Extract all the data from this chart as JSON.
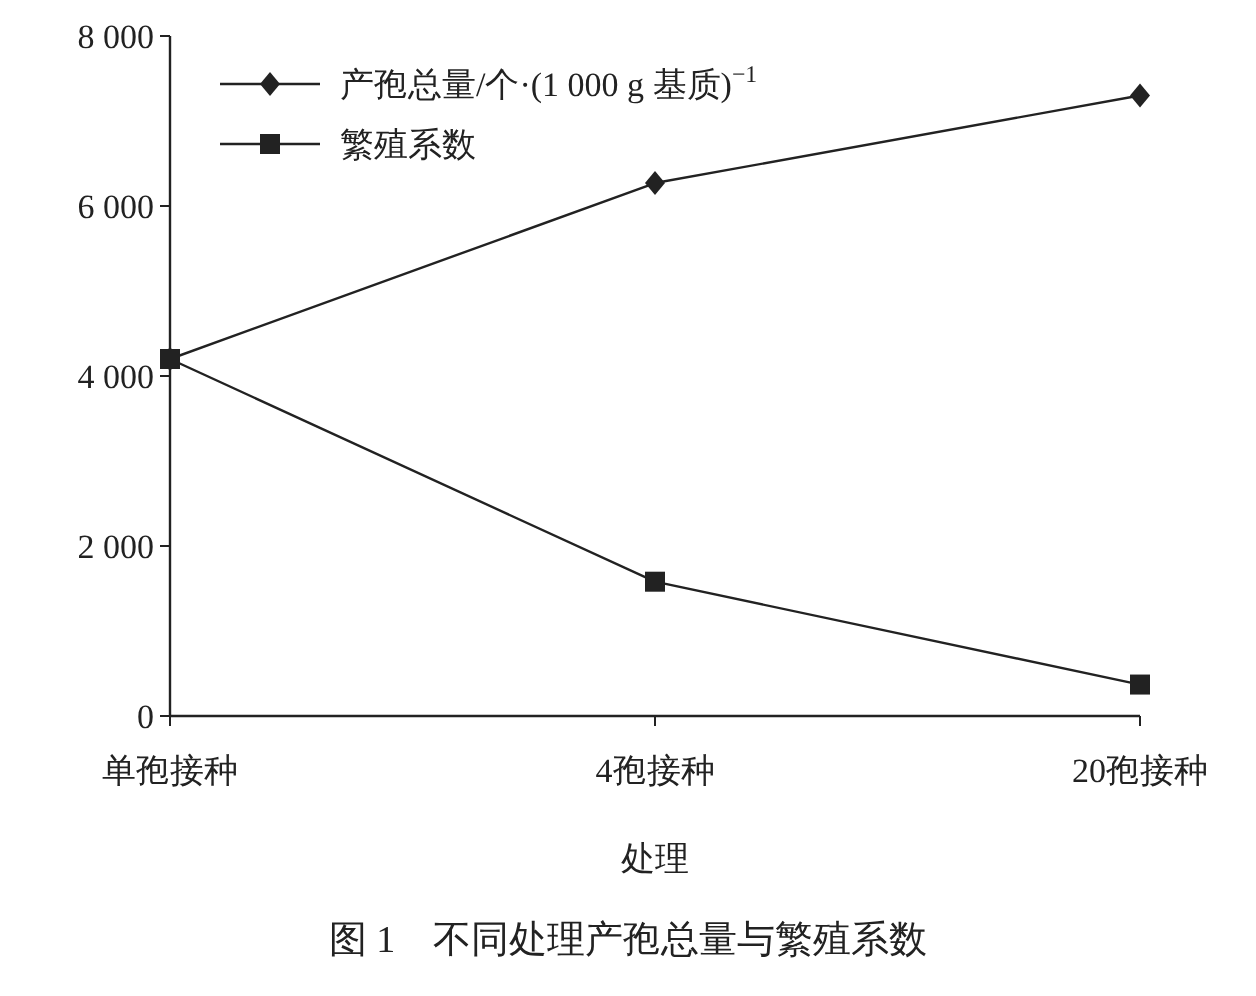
{
  "chart_data": {
    "type": "line",
    "xlabel": "处理",
    "categories": [
      "单孢接种",
      "4孢接种",
      "20孢接种"
    ],
    "series": [
      {
        "name": "产孢总量/个·(1 000 g 基质)$^{−1}$",
        "color": "#222222",
        "marker": "diamond",
        "values": [
          4200,
          6270,
          7300
        ]
      },
      {
        "name": "繁殖系数",
        "color": "#222222",
        "marker": "square",
        "values": [
          4200,
          1580,
          370
        ]
      }
    ],
    "ylim": [
      0,
      8000
    ],
    "yticks": [
      {
        "value": 0,
        "label": "0"
      },
      {
        "value": 2000,
        "label": "2 000"
      },
      {
        "value": 4000,
        "label": "4 000"
      },
      {
        "value": 6000,
        "label": "6 000"
      },
      {
        "value": 8000,
        "label": "8 000"
      }
    ],
    "grid": false,
    "legend": "top left",
    "line_style": "solid",
    "annotations": [
      "图 1　不同处理产孢总量与繁殖系数"
    ]
  }
}
